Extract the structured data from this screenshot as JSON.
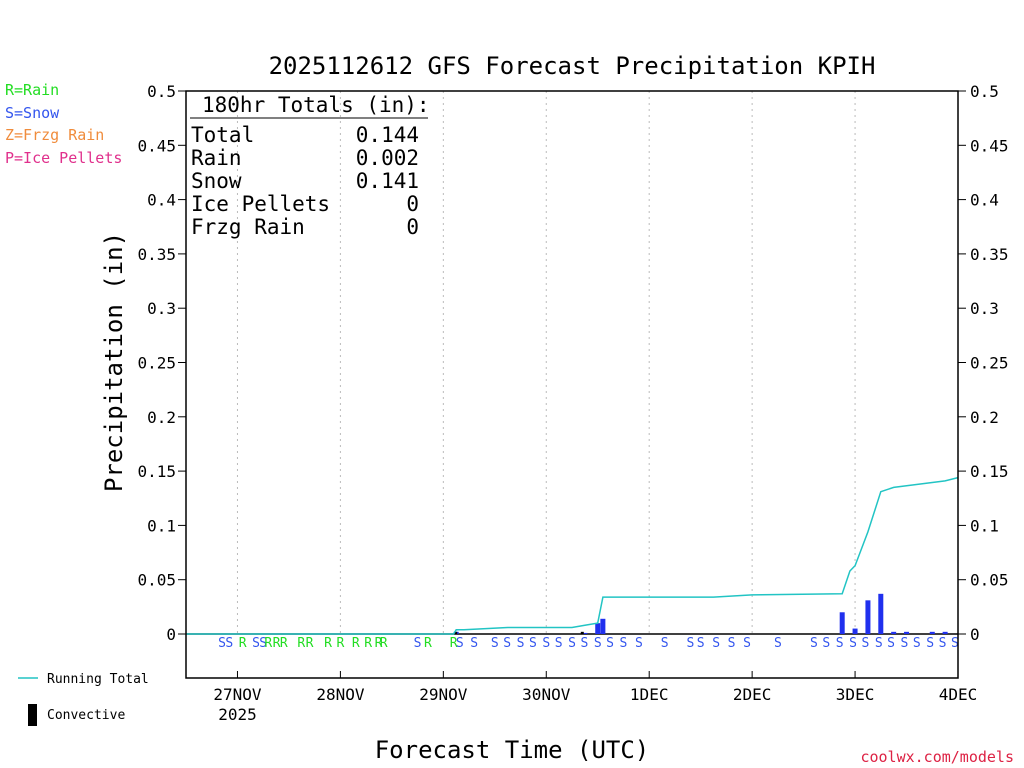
{
  "chart_data": {
    "type": "bar",
    "title": "2025112612 GFS Forecast Precipitation KPIH",
    "xlabel": "Forecast Time (UTC)",
    "ylabel": "Precipitation (in)",
    "ylim": [
      0,
      0.5
    ],
    "xlim_days": [
      -0.5,
      7.0
    ],
    "y_ticks": [
      "0",
      "0.05",
      "0.1",
      "0.15",
      "0.2",
      "0.25",
      "0.3",
      "0.35",
      "0.4",
      "0.45",
      "0.5"
    ],
    "x_ticks": [
      {
        "day": 0,
        "label": "27NOV",
        "sublabel": "2025"
      },
      {
        "day": 1,
        "label": "28NOV",
        "sublabel": ""
      },
      {
        "day": 2,
        "label": "29NOV",
        "sublabel": ""
      },
      {
        "day": 3,
        "label": "30NOV",
        "sublabel": ""
      },
      {
        "day": 4,
        "label": "1DEC",
        "sublabel": ""
      },
      {
        "day": 5,
        "label": "2DEC",
        "sublabel": ""
      },
      {
        "day": 6,
        "label": "3DEC",
        "sublabel": ""
      },
      {
        "day": 7,
        "label": "4DEC",
        "sublabel": ""
      }
    ],
    "precip_type_legend": [
      {
        "code": "R",
        "label": "R=Rain",
        "color": "#22dd22"
      },
      {
        "code": "S",
        "label": "S=Snow",
        "color": "#3355ee"
      },
      {
        "code": "Z",
        "label": "Z=Frzg Rain",
        "color": "#f08c3c"
      },
      {
        "code": "P",
        "label": "P=Ice Pellets",
        "color": "#e0308c"
      }
    ],
    "totals_box": {
      "header": "180hr Totals (in):",
      "rows": [
        {
          "label": "Total",
          "value": "0.144"
        },
        {
          "label": "Rain",
          "value": "0.002"
        },
        {
          "label": "Snow",
          "value": "0.141"
        },
        {
          "label": "Ice Pellets",
          "value": "0"
        },
        {
          "label": "Frzg Rain",
          "value": "0"
        }
      ]
    },
    "series": [
      {
        "name": "Running Total",
        "color": "#22c4c4",
        "points": [
          [
            -0.5,
            0
          ],
          [
            2.1,
            0
          ],
          [
            2.125,
            0.004
          ],
          [
            2.15,
            0.004
          ],
          [
            2.2,
            0.004
          ],
          [
            2.625,
            0.006
          ],
          [
            3.25,
            0.006
          ],
          [
            3.375,
            0.008
          ],
          [
            3.5,
            0.01
          ],
          [
            3.55,
            0.034
          ],
          [
            4.625,
            0.034
          ],
          [
            5.0,
            0.036
          ],
          [
            5.875,
            0.037
          ],
          [
            5.95,
            0.058
          ],
          [
            6.0,
            0.063
          ],
          [
            6.125,
            0.094
          ],
          [
            6.25,
            0.131
          ],
          [
            6.375,
            0.135
          ],
          [
            6.625,
            0.138
          ],
          [
            6.875,
            0.141
          ],
          [
            7.0,
            0.144
          ]
        ]
      },
      {
        "name": "Precip",
        "color": "#2030ee",
        "bars": [
          [
            2.125,
            0.002
          ],
          [
            3.375,
            0.001
          ],
          [
            3.5,
            0.01
          ],
          [
            3.55,
            0.014
          ],
          [
            5.875,
            0.02
          ],
          [
            6.0,
            0.005
          ],
          [
            6.125,
            0.031
          ],
          [
            6.25,
            0.037
          ],
          [
            6.375,
            0.002
          ],
          [
            6.5,
            0.002
          ],
          [
            6.75,
            0.002
          ],
          [
            6.875,
            0.002
          ]
        ]
      },
      {
        "name": "Convective",
        "color": "#000000",
        "bars": [
          [
            2.12,
            0.002
          ],
          [
            3.35,
            0.002
          ]
        ]
      }
    ],
    "precip_type_markers": [
      {
        "day": -0.15,
        "type": "S"
      },
      {
        "day": -0.08,
        "type": "S"
      },
      {
        "day": 0.05,
        "type": "R"
      },
      {
        "day": 0.18,
        "type": "S"
      },
      {
        "day": 0.25,
        "type": "S"
      },
      {
        "day": 0.3,
        "type": "R"
      },
      {
        "day": 0.38,
        "type": "R"
      },
      {
        "day": 0.45,
        "type": "R"
      },
      {
        "day": 0.62,
        "type": "R"
      },
      {
        "day": 0.7,
        "type": "R"
      },
      {
        "day": 0.88,
        "type": "R"
      },
      {
        "day": 1.0,
        "type": "R"
      },
      {
        "day": 1.15,
        "type": "R"
      },
      {
        "day": 1.27,
        "type": "R"
      },
      {
        "day": 1.37,
        "type": "R"
      },
      {
        "day": 1.42,
        "type": "R"
      },
      {
        "day": 1.75,
        "type": "S"
      },
      {
        "day": 1.85,
        "type": "R"
      },
      {
        "day": 2.1,
        "type": "R"
      },
      {
        "day": 2.16,
        "type": "S"
      },
      {
        "day": 2.3,
        "type": "S"
      },
      {
        "day": 2.5,
        "type": "S"
      },
      {
        "day": 2.62,
        "type": "S"
      },
      {
        "day": 2.75,
        "type": "S"
      },
      {
        "day": 2.87,
        "type": "S"
      },
      {
        "day": 3.0,
        "type": "S"
      },
      {
        "day": 3.12,
        "type": "S"
      },
      {
        "day": 3.25,
        "type": "S"
      },
      {
        "day": 3.37,
        "type": "S"
      },
      {
        "day": 3.5,
        "type": "S"
      },
      {
        "day": 3.62,
        "type": "S"
      },
      {
        "day": 3.75,
        "type": "S"
      },
      {
        "day": 3.9,
        "type": "S"
      },
      {
        "day": 4.15,
        "type": "S"
      },
      {
        "day": 4.4,
        "type": "S"
      },
      {
        "day": 4.5,
        "type": "S"
      },
      {
        "day": 4.65,
        "type": "S"
      },
      {
        "day": 4.8,
        "type": "S"
      },
      {
        "day": 4.95,
        "type": "S"
      },
      {
        "day": 5.25,
        "type": "S"
      },
      {
        "day": 5.6,
        "type": "S"
      },
      {
        "day": 5.72,
        "type": "S"
      },
      {
        "day": 5.85,
        "type": "S"
      },
      {
        "day": 5.98,
        "type": "S"
      },
      {
        "day": 6.1,
        "type": "S"
      },
      {
        "day": 6.23,
        "type": "S"
      },
      {
        "day": 6.35,
        "type": "S"
      },
      {
        "day": 6.48,
        "type": "S"
      },
      {
        "day": 6.6,
        "type": "S"
      },
      {
        "day": 6.73,
        "type": "S"
      },
      {
        "day": 6.85,
        "type": "S"
      },
      {
        "day": 6.97,
        "type": "S"
      }
    ],
    "legend": [
      {
        "name": "Running Total",
        "style": "line",
        "color": "#22c4c4"
      },
      {
        "name": "Convective",
        "style": "bar",
        "color": "#000000"
      }
    ],
    "credit": "coolwx.com/models",
    "grid": true
  }
}
